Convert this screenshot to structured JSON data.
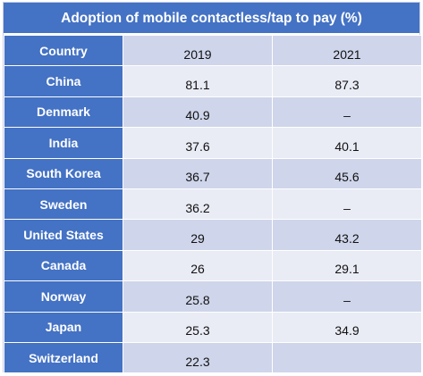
{
  "chart_data": {
    "type": "table",
    "title": "Adoption of mobile contactless/tap to pay (%)",
    "columns": [
      "Country",
      "2019",
      "2021"
    ],
    "rows": [
      {
        "country": "China",
        "y2019": "81.1",
        "y2021": "87.3"
      },
      {
        "country": "Denmark",
        "y2019": "40.9",
        "y2021": "–"
      },
      {
        "country": "India",
        "y2019": "37.6",
        "y2021": "40.1"
      },
      {
        "country": "South Korea",
        "y2019": "36.7",
        "y2021": "45.6"
      },
      {
        "country": "Sweden",
        "y2019": "36.2",
        "y2021": "–"
      },
      {
        "country": "United States",
        "y2019": "29",
        "y2021": "43.2"
      },
      {
        "country": "Canada",
        "y2019": "26",
        "y2021": "29.1"
      },
      {
        "country": "Norway",
        "y2019": "25.8",
        "y2021": "–"
      },
      {
        "country": "Japan",
        "y2019": "25.3",
        "y2021": "34.9"
      },
      {
        "country": "Switzerland",
        "y2019": "22.3",
        "y2021": ""
      }
    ]
  },
  "colors": {
    "header_blue": "#4472c4",
    "row_dark": "#cfd5ea",
    "row_light": "#e9ebf5"
  }
}
